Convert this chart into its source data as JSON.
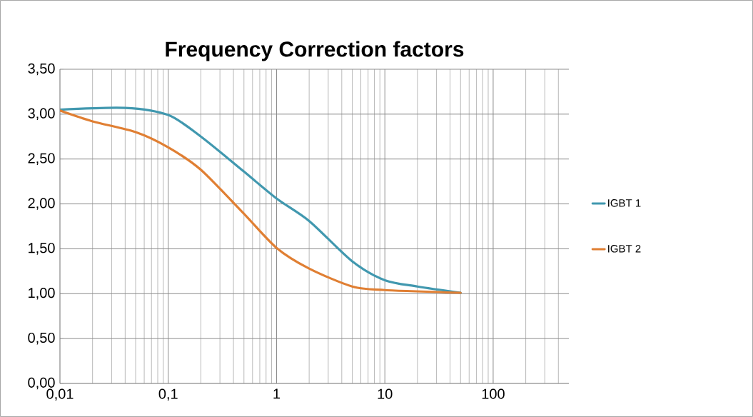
{
  "chart_data": {
    "type": "line",
    "title": "Frequency Correction factors",
    "log": "x",
    "grid": true,
    "legend": "right",
    "marker": "none",
    "line_style": "solid",
    "xlim": [
      0.01,
      500
    ],
    "ylim": [
      0,
      3.5
    ],
    "xticks": [
      {
        "value": 0.01,
        "label": "0,01"
      },
      {
        "value": 0.1,
        "label": "0,1"
      },
      1,
      10,
      100
    ],
    "yticks": [
      {
        "value": 0,
        "label": "0,00"
      },
      {
        "value": 0.5,
        "label": "0,50"
      },
      {
        "value": 1,
        "label": "1,00"
      },
      {
        "value": 1.5,
        "label": "1,50"
      },
      {
        "value": 2,
        "label": "2,00"
      },
      {
        "value": 2.5,
        "label": "2,50"
      },
      {
        "value": 3,
        "label": "3,00"
      },
      {
        "value": 3.5,
        "label": "3,50"
      }
    ],
    "series": [
      {
        "name": "IGBT 1",
        "color": "#4198af",
        "x": [
          0.01,
          0.04,
          0.1,
          0.2,
          0.5,
          1,
          2,
          5,
          10,
          20,
          50
        ],
        "values": [
          3.05,
          3.07,
          2.99,
          2.75,
          2.36,
          2.06,
          1.81,
          1.36,
          1.15,
          1.08,
          1.01
        ]
      },
      {
        "name": "IGBT 2",
        "color": "#e07f33",
        "x": [
          0.01,
          0.02,
          0.05,
          0.1,
          0.2,
          0.5,
          1,
          2,
          5,
          10,
          50
        ],
        "values": [
          3.04,
          2.92,
          2.8,
          2.63,
          2.38,
          1.89,
          1.51,
          1.28,
          1.08,
          1.04,
          1.01
        ]
      }
    ]
  }
}
